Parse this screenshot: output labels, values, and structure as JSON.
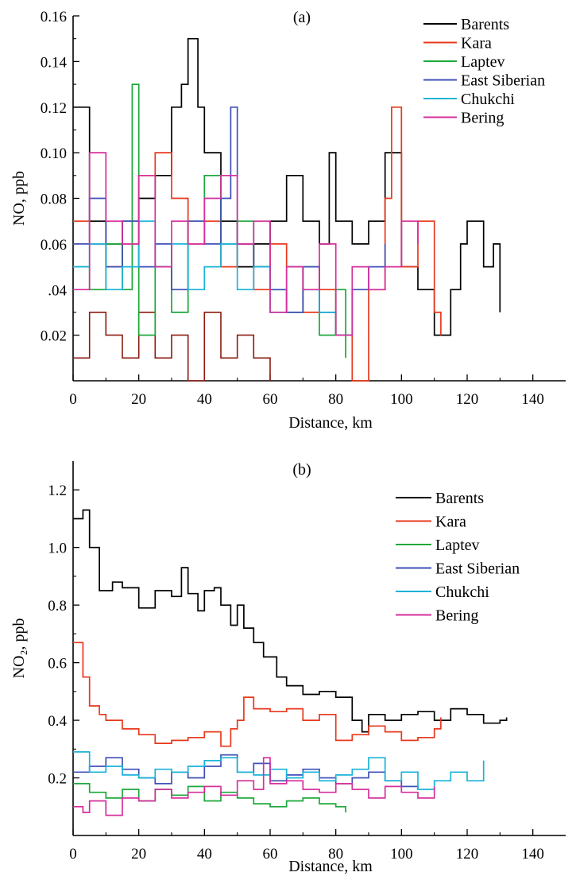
{
  "chart_data": [
    {
      "type": "line",
      "panel_label": "(a)",
      "xlabel": "Distance, km",
      "ylabel": "NO, ppb",
      "xlim": [
        0,
        150
      ],
      "ylim": [
        0,
        0.16
      ],
      "x_ticks": [
        0,
        20,
        40,
        60,
        80,
        100,
        120,
        140
      ],
      "x_tick_labels": [
        "0",
        "20",
        "40",
        "60",
        "80",
        "100",
        "120",
        "140"
      ],
      "y_ticks": [
        0.02,
        0.04,
        0.06,
        0.08,
        0.1,
        0.12,
        0.14,
        0.16
      ],
      "y_tick_labels": [
        "0.02",
        ".04",
        "0.06",
        "0.08",
        "0.10",
        "0.12",
        "0.14",
        "0.16"
      ],
      "legend_position": "top-right",
      "grid": false,
      "series": [
        {
          "name": "Barents",
          "color": "#000000",
          "x": [
            0,
            5,
            10,
            15,
            20,
            25,
            30,
            33,
            35,
            38,
            40,
            45,
            50,
            55,
            60,
            65,
            70,
            75,
            78,
            80,
            85,
            90,
            95,
            100,
            105,
            110,
            115,
            118,
            120,
            125,
            128,
            130
          ],
          "y": [
            0.12,
            0.07,
            0.06,
            0.07,
            0.08,
            0.09,
            0.12,
            0.13,
            0.15,
            0.12,
            0.1,
            0.07,
            0.05,
            0.06,
            0.07,
            0.09,
            0.07,
            0.06,
            0.1,
            0.07,
            0.06,
            0.07,
            0.1,
            0.05,
            0.04,
            0.02,
            0.04,
            0.06,
            0.07,
            0.05,
            0.06,
            0.03
          ]
        },
        {
          "name": "Kara",
          "color": "#e8381c",
          "x": [
            0,
            5,
            10,
            15,
            20,
            25,
            30,
            35,
            40,
            45,
            50,
            55,
            60,
            65,
            70,
            75,
            80,
            85,
            90,
            95,
            97,
            100,
            105,
            110,
            112
          ],
          "y": [
            0.07,
            0.06,
            0.05,
            0.06,
            0.09,
            0.1,
            0.08,
            0.06,
            0.07,
            0.05,
            0.06,
            0.04,
            0.06,
            0.05,
            0.03,
            0.04,
            0.02,
            0.0,
            0.04,
            0.08,
            0.12,
            0.05,
            0.07,
            0.03,
            0.02
          ]
        },
        {
          "name": "Laptev",
          "color": "#1aa83a",
          "x": [
            0,
            5,
            10,
            15,
            18,
            20,
            25,
            30,
            35,
            40,
            45,
            50,
            55,
            60,
            65,
            70,
            75,
            80,
            83
          ],
          "y": [
            0.05,
            0.04,
            0.06,
            0.04,
            0.13,
            0.02,
            0.05,
            0.03,
            0.07,
            0.09,
            0.06,
            0.07,
            0.05,
            0.04,
            0.03,
            0.05,
            0.02,
            0.04,
            0.01
          ]
        },
        {
          "name": "East Siberian",
          "color": "#3f4fb8",
          "x": [
            0,
            5,
            10,
            15,
            20,
            25,
            30,
            35,
            40,
            45,
            48,
            50,
            55,
            60,
            65,
            70,
            75,
            80,
            85,
            90,
            95
          ],
          "y": [
            0.06,
            0.08,
            0.05,
            0.07,
            0.05,
            0.06,
            0.04,
            0.07,
            0.06,
            0.08,
            0.12,
            0.06,
            0.05,
            0.04,
            0.03,
            0.05,
            0.03,
            0.02,
            0.04,
            0.05,
            0.06
          ]
        },
        {
          "name": "Chukchi",
          "color": "#19b3d8",
          "x": [
            0,
            5,
            10,
            15,
            20,
            25,
            30,
            35,
            40,
            45,
            50,
            55,
            60,
            65,
            70,
            75,
            80,
            85
          ],
          "y": [
            0.05,
            0.06,
            0.04,
            0.05,
            0.07,
            0.05,
            0.06,
            0.04,
            0.05,
            0.06,
            0.04,
            0.05,
            0.03,
            0.05,
            0.04,
            0.03,
            0.02,
            0.04
          ]
        },
        {
          "name": "Bering",
          "color": "#d62f9b",
          "x": [
            0,
            5,
            10,
            15,
            20,
            25,
            30,
            35,
            40,
            45,
            50,
            55,
            60,
            65,
            70,
            75,
            80,
            85,
            90,
            95,
            100,
            105
          ],
          "y": [
            0.04,
            0.1,
            0.07,
            0.06,
            0.09,
            0.05,
            0.07,
            0.06,
            0.08,
            0.09,
            0.06,
            0.07,
            0.03,
            0.05,
            0.04,
            0.06,
            0.02,
            0.05,
            0.04,
            0.05,
            0.07,
            0.06
          ]
        }
      ],
      "extra_traces": [
        {
          "color": "#8b1a0f",
          "x": [
            0,
            5,
            10,
            15,
            20,
            25,
            30,
            35,
            40,
            45,
            50,
            55,
            60
          ],
          "y": [
            0.01,
            0.03,
            0.02,
            0.01,
            0.03,
            0.01,
            0.02,
            0.0,
            0.03,
            0.01,
            0.02,
            0.01,
            0.0
          ]
        }
      ]
    },
    {
      "type": "line",
      "panel_label": "(b)",
      "xlabel": "Distance, km",
      "ylabel": "NO₂, ppb",
      "xlim": [
        0,
        150
      ],
      "ylim": [
        0,
        1.3
      ],
      "x_ticks": [
        0,
        20,
        40,
        60,
        80,
        100,
        120,
        140
      ],
      "x_tick_labels": [
        "0",
        "20",
        "40",
        "60",
        "80",
        "100",
        "120",
        "140"
      ],
      "y_ticks": [
        0.2,
        0.4,
        0.6,
        0.8,
        1.0,
        1.2
      ],
      "y_tick_labels": [
        "0.2",
        "0.4",
        "0.6",
        "0.8",
        "1.0",
        "1.2"
      ],
      "legend_position": "top-right",
      "grid": false,
      "series": [
        {
          "name": "Barents",
          "color": "#000000",
          "x": [
            0,
            3,
            5,
            8,
            12,
            15,
            20,
            25,
            30,
            33,
            35,
            38,
            40,
            43,
            45,
            48,
            50,
            52,
            55,
            58,
            60,
            62,
            65,
            70,
            75,
            80,
            85,
            88,
            90,
            95,
            100,
            105,
            110,
            115,
            120,
            125,
            130,
            132
          ],
          "y": [
            1.1,
            1.13,
            1.0,
            0.85,
            0.88,
            0.86,
            0.79,
            0.85,
            0.83,
            0.93,
            0.84,
            0.78,
            0.85,
            0.86,
            0.8,
            0.73,
            0.8,
            0.72,
            0.67,
            0.62,
            0.62,
            0.55,
            0.52,
            0.49,
            0.5,
            0.48,
            0.4,
            0.36,
            0.42,
            0.4,
            0.42,
            0.43,
            0.4,
            0.44,
            0.42,
            0.39,
            0.4,
            0.41
          ]
        },
        {
          "name": "Kara",
          "color": "#e8381c",
          "x": [
            0,
            3,
            5,
            8,
            10,
            15,
            20,
            25,
            30,
            35,
            40,
            45,
            48,
            50,
            52,
            55,
            60,
            65,
            70,
            75,
            80,
            85,
            90,
            95,
            100,
            105,
            110,
            112
          ],
          "y": [
            0.67,
            0.55,
            0.45,
            0.42,
            0.4,
            0.37,
            0.35,
            0.32,
            0.33,
            0.34,
            0.36,
            0.31,
            0.37,
            0.4,
            0.48,
            0.44,
            0.43,
            0.44,
            0.4,
            0.42,
            0.33,
            0.35,
            0.38,
            0.36,
            0.33,
            0.34,
            0.37,
            0.41
          ]
        },
        {
          "name": "Laptev",
          "color": "#1aa83a",
          "x": [
            0,
            5,
            10,
            15,
            20,
            25,
            30,
            35,
            40,
            45,
            50,
            55,
            60,
            65,
            70,
            75,
            80,
            83
          ],
          "y": [
            0.18,
            0.15,
            0.13,
            0.16,
            0.12,
            0.16,
            0.14,
            0.17,
            0.12,
            0.15,
            0.13,
            0.11,
            0.1,
            0.12,
            0.13,
            0.11,
            0.1,
            0.08
          ]
        },
        {
          "name": "East Siberian",
          "color": "#3f4fb8",
          "x": [
            0,
            5,
            10,
            15,
            20,
            25,
            30,
            35,
            40,
            45,
            50,
            55,
            60,
            65,
            70,
            75,
            80,
            85,
            90,
            95,
            100,
            105
          ],
          "y": [
            0.22,
            0.24,
            0.27,
            0.23,
            0.2,
            0.18,
            0.22,
            0.2,
            0.24,
            0.28,
            0.22,
            0.25,
            0.19,
            0.21,
            0.23,
            0.2,
            0.18,
            0.2,
            0.22,
            0.19,
            0.17,
            0.16
          ]
        },
        {
          "name": "Chukchi",
          "color": "#19b3d8",
          "x": [
            0,
            5,
            10,
            15,
            20,
            25,
            30,
            35,
            40,
            45,
            50,
            55,
            60,
            65,
            70,
            75,
            80,
            85,
            90,
            95,
            100,
            105,
            110,
            115,
            120,
            125
          ],
          "y": [
            0.29,
            0.22,
            0.24,
            0.21,
            0.2,
            0.23,
            0.22,
            0.24,
            0.26,
            0.27,
            0.22,
            0.21,
            0.23,
            0.2,
            0.22,
            0.19,
            0.21,
            0.23,
            0.27,
            0.19,
            0.22,
            0.16,
            0.19,
            0.22,
            0.19,
            0.26
          ]
        },
        {
          "name": "Bering",
          "color": "#d62f9b",
          "x": [
            0,
            3,
            5,
            10,
            15,
            20,
            25,
            30,
            35,
            40,
            45,
            50,
            55,
            58,
            60,
            65,
            70,
            75,
            80,
            85,
            90,
            95,
            100,
            105,
            110
          ],
          "y": [
            0.1,
            0.08,
            0.12,
            0.07,
            0.13,
            0.12,
            0.16,
            0.13,
            0.15,
            0.17,
            0.14,
            0.19,
            0.16,
            0.27,
            0.18,
            0.19,
            0.16,
            0.15,
            0.18,
            0.16,
            0.13,
            0.17,
            0.15,
            0.13,
            0.17
          ]
        }
      ]
    }
  ]
}
